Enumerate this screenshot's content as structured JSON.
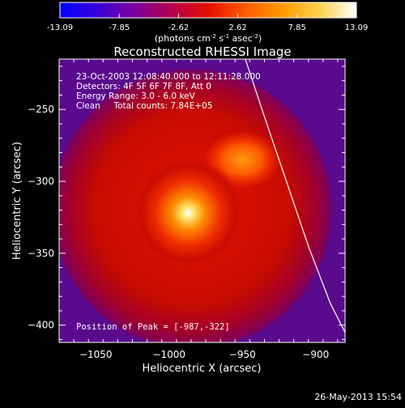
{
  "colorbar": {
    "tick_labels": [
      "-13.09",
      "-7.85",
      "-2.62",
      "2.62",
      "7.85",
      "13.09"
    ],
    "tick_values": [
      -13.09,
      -7.85,
      -2.62,
      2.62,
      7.85,
      13.09
    ],
    "range": [
      -13.09,
      13.09
    ],
    "units_base": "(photons cm",
    "units_exp1": "-2",
    "units_mid": " s",
    "units_exp2": "-1",
    "units_asec": " asec",
    "units_exp3": "-2",
    "units_close": ")",
    "stops": [
      "#0000ff",
      "#3a00d8",
      "#7a00a0",
      "#b4004a",
      "#e60e00",
      "#ff5a00",
      "#ff9a00",
      "#ffd24a",
      "#ffffff"
    ]
  },
  "chart_data": {
    "type": "heatmap",
    "title": "Reconstructed RHESSI Image",
    "xlabel": "Heliocentric X (arcsec)",
    "ylabel": "Heliocentric Y (arcsec)",
    "xlim": [
      -1075,
      -880
    ],
    "ylim": [
      -412,
      -215
    ],
    "x_ticks": [
      -1050,
      -1000,
      -950,
      -900
    ],
    "x_tick_labels": [
      "−1050",
      "−1000",
      "−950",
      "−900"
    ],
    "y_ticks": [
      -250,
      -300,
      -350,
      -400
    ],
    "y_tick_labels": [
      "−250",
      "−300",
      "−350",
      "−400"
    ],
    "annotations": [
      "23-Oct-2003 12:08:40.000 to 12:11:28.000",
      "Detectors: 4F 5F 6F 7F 8F, Att 0",
      "Energy Range: 3.0 - 6.0 keV",
      "Clean     Total counts: 7.84E+05"
    ],
    "peak_label": "Position of Peak = [-987,-322]",
    "peak": [
      -987,
      -322
    ],
    "secondary_source": [
      -950,
      -285
    ],
    "limb_line": [
      [
        -948,
        -215
      ],
      [
        -935,
        -255
      ],
      [
        -920,
        -300
      ],
      [
        -905,
        -345
      ],
      [
        -890,
        -385
      ],
      [
        -880,
        -405
      ]
    ],
    "colors": {
      "background_field": "#5a0a8c",
      "limb_line": "#ffffff"
    }
  },
  "footer": {
    "timestamp": "26-May-2013 15:54"
  }
}
